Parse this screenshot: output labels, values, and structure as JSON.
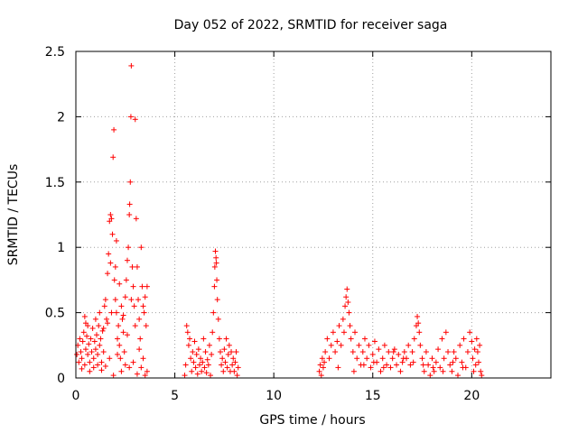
{
  "chart_data": {
    "type": "scatter",
    "title": "Day 052 of 2022, SRMTID for receiver saga",
    "xlabel": "GPS time / hours",
    "ylabel": "SRMTID / TECUs",
    "xlim": [
      0,
      24
    ],
    "ylim": [
      0,
      2.5
    ],
    "xticks": [
      0,
      5,
      10,
      15,
      20
    ],
    "yticks": [
      0,
      0.5,
      1,
      1.5,
      2,
      2.5
    ],
    "xtick_labels": [
      "0",
      "5",
      "10",
      "15",
      "20"
    ],
    "ytick_labels": [
      "0",
      "0.5",
      "1",
      "1.5",
      "2",
      "2.5"
    ],
    "grid": true,
    "marker": "+",
    "color": "#ff0000",
    "series": [
      {
        "name": "SRMTID",
        "points": [
          [
            0.05,
            0.18
          ],
          [
            0.1,
            0.25
          ],
          [
            0.15,
            0.12
          ],
          [
            0.2,
            0.3
          ],
          [
            0.25,
            0.2
          ],
          [
            0.3,
            0.15
          ],
          [
            0.35,
            0.28
          ],
          [
            0.4,
            0.35
          ],
          [
            0.45,
            0.1
          ],
          [
            0.5,
            0.22
          ],
          [
            0.45,
            0.47
          ],
          [
            0.5,
            0.42
          ],
          [
            0.55,
            0.32
          ],
          [
            0.6,
            0.18
          ],
          [
            0.65,
            0.26
          ],
          [
            0.7,
            0.12
          ],
          [
            0.75,
            0.3
          ],
          [
            0.8,
            0.2
          ],
          [
            0.85,
            0.38
          ],
          [
            0.9,
            0.15
          ],
          [
            0.95,
            0.28
          ],
          [
            1.0,
            0.22
          ],
          [
            1.05,
            0.33
          ],
          [
            1.1,
            0.18
          ],
          [
            1.15,
            0.4
          ],
          [
            1.2,
            0.25
          ],
          [
            1.25,
            0.3
          ],
          [
            1.3,
            0.12
          ],
          [
            1.35,
            0.36
          ],
          [
            1.4,
            0.2
          ],
          [
            1.45,
            0.55
          ],
          [
            1.5,
            0.6
          ],
          [
            1.55,
            0.45
          ],
          [
            1.6,
            0.8
          ],
          [
            1.65,
            0.95
          ],
          [
            1.7,
            1.2
          ],
          [
            1.75,
            1.25
          ],
          [
            1.8,
            1.22
          ],
          [
            1.85,
            1.1
          ],
          [
            1.88,
            1.69
          ],
          [
            1.92,
            1.9
          ],
          [
            1.95,
            0.75
          ],
          [
            2.0,
            0.85
          ],
          [
            2.05,
            0.5
          ],
          [
            2.1,
            0.3
          ],
          [
            2.15,
            0.4
          ],
          [
            2.2,
            0.25
          ],
          [
            2.25,
            0.15
          ],
          [
            2.3,
            0.55
          ],
          [
            2.35,
            0.45
          ],
          [
            2.4,
            0.35
          ],
          [
            2.45,
            0.2
          ],
          [
            2.5,
            0.62
          ],
          [
            2.55,
            0.75
          ],
          [
            2.6,
            0.9
          ],
          [
            2.65,
            1.0
          ],
          [
            2.7,
            1.25
          ],
          [
            2.72,
            1.33
          ],
          [
            2.75,
            1.5
          ],
          [
            2.78,
            2.0
          ],
          [
            2.8,
            2.39
          ],
          [
            2.85,
            0.85
          ],
          [
            2.9,
            0.7
          ],
          [
            2.95,
            0.55
          ],
          [
            3.0,
            1.98
          ],
          [
            3.05,
            1.22
          ],
          [
            3.1,
            0.85
          ],
          [
            3.15,
            0.6
          ],
          [
            3.2,
            0.45
          ],
          [
            3.25,
            0.3
          ],
          [
            3.3,
            1.0
          ],
          [
            3.35,
            0.7
          ],
          [
            3.4,
            0.55
          ],
          [
            3.45,
            0.5
          ],
          [
            3.5,
            0.62
          ],
          [
            3.55,
            0.4
          ],
          [
            3.6,
            0.7
          ],
          [
            3.6,
            0.05
          ],
          [
            3.5,
            0.02
          ],
          [
            3.3,
            0.08
          ],
          [
            3.1,
            0.03
          ],
          [
            2.9,
            0.12
          ],
          [
            2.7,
            0.08
          ],
          [
            2.5,
            0.1
          ],
          [
            2.3,
            0.05
          ],
          [
            2.1,
            0.18
          ],
          [
            1.9,
            0.02
          ],
          [
            1.7,
            0.15
          ],
          [
            1.5,
            0.09
          ],
          [
            1.3,
            0.06
          ],
          [
            1.1,
            0.1
          ],
          [
            0.9,
            0.08
          ],
          [
            0.7,
            0.05
          ],
          [
            0.3,
            0.07
          ],
          [
            0.6,
            0.4
          ],
          [
            1.0,
            0.45
          ],
          [
            1.2,
            0.5
          ],
          [
            1.4,
            0.38
          ],
          [
            1.6,
            0.42
          ],
          [
            1.8,
            0.5
          ],
          [
            2.0,
            0.6
          ],
          [
            2.2,
            0.72
          ],
          [
            2.4,
            0.48
          ],
          [
            2.6,
            0.33
          ],
          [
            2.8,
            0.6
          ],
          [
            3.0,
            0.4
          ],
          [
            3.2,
            0.22
          ],
          [
            3.4,
            0.15
          ],
          [
            1.75,
            0.88
          ],
          [
            2.05,
            1.05
          ],
          [
            5.5,
            0.02
          ],
          [
            5.55,
            0.1
          ],
          [
            5.6,
            0.4
          ],
          [
            5.65,
            0.35
          ],
          [
            5.7,
            0.25
          ],
          [
            5.75,
            0.3
          ],
          [
            5.8,
            0.15
          ],
          [
            5.85,
            0.05
          ],
          [
            5.9,
            0.2
          ],
          [
            5.95,
            0.12
          ],
          [
            6.0,
            0.28
          ],
          [
            6.05,
            0.08
          ],
          [
            6.1,
            0.18
          ],
          [
            6.15,
            0.03
          ],
          [
            6.2,
            0.22
          ],
          [
            6.25,
            0.1
          ],
          [
            6.3,
            0.15
          ],
          [
            6.35,
            0.05
          ],
          [
            6.4,
            0.12
          ],
          [
            6.45,
            0.3
          ],
          [
            6.5,
            0.08
          ],
          [
            6.55,
            0.2
          ],
          [
            6.6,
            0.04
          ],
          [
            6.65,
            0.14
          ],
          [
            6.7,
            0.1
          ],
          [
            6.75,
            0.25
          ],
          [
            6.8,
            0.02
          ],
          [
            6.85,
            0.18
          ],
          [
            6.9,
            0.35
          ],
          [
            6.95,
            0.5
          ],
          [
            7.0,
            0.7
          ],
          [
            7.02,
            0.85
          ],
          [
            7.05,
            0.97
          ],
          [
            7.08,
            0.92
          ],
          [
            7.1,
            0.88
          ],
          [
            7.12,
            0.75
          ],
          [
            7.15,
            0.6
          ],
          [
            7.2,
            0.45
          ],
          [
            7.25,
            0.3
          ],
          [
            7.3,
            0.2
          ],
          [
            7.35,
            0.1
          ],
          [
            7.4,
            0.15
          ],
          [
            7.45,
            0.05
          ],
          [
            7.5,
            0.22
          ],
          [
            7.55,
            0.12
          ],
          [
            7.6,
            0.3
          ],
          [
            7.65,
            0.08
          ],
          [
            7.7,
            0.18
          ],
          [
            7.75,
            0.25
          ],
          [
            7.8,
            0.05
          ],
          [
            7.85,
            0.2
          ],
          [
            7.9,
            0.1
          ],
          [
            7.95,
            0.15
          ],
          [
            8.0,
            0.05
          ],
          [
            8.05,
            0.12
          ],
          [
            8.1,
            0.2
          ],
          [
            8.15,
            0.02
          ],
          [
            8.2,
            0.08
          ],
          [
            12.3,
            0.05
          ],
          [
            12.35,
            0.1
          ],
          [
            12.4,
            0.02
          ],
          [
            12.45,
            0.15
          ],
          [
            12.5,
            0.08
          ],
          [
            12.6,
            0.2
          ],
          [
            12.7,
            0.3
          ],
          [
            12.8,
            0.15
          ],
          [
            12.9,
            0.25
          ],
          [
            13.0,
            0.35
          ],
          [
            13.1,
            0.2
          ],
          [
            13.2,
            0.28
          ],
          [
            13.3,
            0.4
          ],
          [
            13.4,
            0.25
          ],
          [
            13.5,
            0.45
          ],
          [
            13.55,
            0.35
          ],
          [
            13.6,
            0.55
          ],
          [
            13.65,
            0.62
          ],
          [
            13.7,
            0.68
          ],
          [
            13.75,
            0.58
          ],
          [
            13.8,
            0.5
          ],
          [
            13.85,
            0.4
          ],
          [
            13.9,
            0.3
          ],
          [
            14.0,
            0.2
          ],
          [
            14.1,
            0.35
          ],
          [
            14.2,
            0.15
          ],
          [
            14.3,
            0.25
          ],
          [
            14.4,
            0.1
          ],
          [
            14.5,
            0.2
          ],
          [
            14.6,
            0.3
          ],
          [
            14.7,
            0.15
          ],
          [
            14.8,
            0.25
          ],
          [
            14.9,
            0.08
          ],
          [
            15.0,
            0.18
          ],
          [
            15.1,
            0.28
          ],
          [
            15.2,
            0.12
          ],
          [
            15.3,
            0.22
          ],
          [
            15.4,
            0.05
          ],
          [
            15.5,
            0.15
          ],
          [
            15.6,
            0.25
          ],
          [
            15.7,
            0.1
          ],
          [
            15.8,
            0.2
          ],
          [
            15.9,
            0.08
          ],
          [
            16.0,
            0.15
          ],
          [
            16.1,
            0.22
          ],
          [
            16.2,
            0.1
          ],
          [
            16.3,
            0.18
          ],
          [
            16.4,
            0.05
          ],
          [
            16.5,
            0.12
          ],
          [
            16.6,
            0.2
          ],
          [
            16.7,
            0.15
          ],
          [
            16.8,
            0.25
          ],
          [
            16.9,
            0.1
          ],
          [
            17.0,
            0.2
          ],
          [
            17.1,
            0.3
          ],
          [
            17.2,
            0.4
          ],
          [
            17.25,
            0.47
          ],
          [
            17.3,
            0.42
          ],
          [
            17.35,
            0.35
          ],
          [
            17.4,
            0.25
          ],
          [
            17.5,
            0.15
          ],
          [
            17.6,
            0.05
          ],
          [
            17.7,
            0.2
          ],
          [
            17.8,
            0.1
          ],
          [
            17.9,
            0.02
          ],
          [
            18.0,
            0.15
          ],
          [
            18.1,
            0.05
          ],
          [
            18.2,
            0.12
          ],
          [
            18.3,
            0.22
          ],
          [
            18.4,
            0.08
          ],
          [
            18.5,
            0.3
          ],
          [
            18.6,
            0.15
          ],
          [
            18.7,
            0.35
          ],
          [
            18.8,
            0.2
          ],
          [
            18.9,
            0.1
          ],
          [
            19.0,
            0.05
          ],
          [
            19.1,
            0.2
          ],
          [
            19.2,
            0.15
          ],
          [
            19.3,
            0.02
          ],
          [
            19.4,
            0.25
          ],
          [
            19.5,
            0.12
          ],
          [
            19.6,
            0.3
          ],
          [
            19.7,
            0.08
          ],
          [
            19.8,
            0.2
          ],
          [
            19.9,
            0.35
          ],
          [
            20.0,
            0.28
          ],
          [
            20.05,
            0.15
          ],
          [
            20.1,
            0.05
          ],
          [
            20.15,
            0.22
          ],
          [
            20.2,
            0.1
          ],
          [
            20.25,
            0.3
          ],
          [
            20.3,
            0.2
          ],
          [
            20.35,
            0.12
          ],
          [
            20.4,
            0.25
          ],
          [
            20.45,
            0.05
          ],
          [
            20.5,
            0.02
          ],
          [
            12.55,
            0.12
          ],
          [
            13.25,
            0.08
          ],
          [
            14.05,
            0.05
          ],
          [
            14.55,
            0.1
          ],
          [
            15.05,
            0.12
          ],
          [
            15.55,
            0.08
          ],
          [
            16.05,
            0.2
          ],
          [
            16.55,
            0.15
          ],
          [
            17.05,
            0.12
          ],
          [
            17.55,
            0.1
          ],
          [
            18.05,
            0.08
          ],
          [
            18.55,
            0.05
          ],
          [
            19.05,
            0.12
          ],
          [
            19.55,
            0.08
          ]
        ]
      }
    ]
  }
}
